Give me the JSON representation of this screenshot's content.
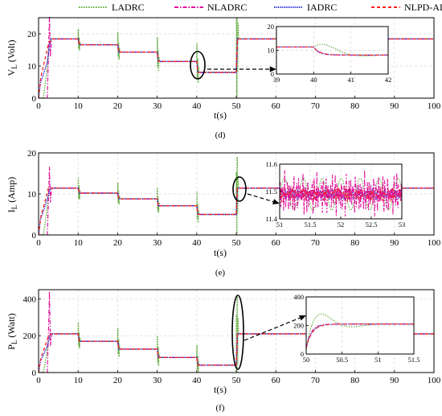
{
  "colors": {
    "LADRC": "#5fa83a",
    "NLADRC": "#e0109a",
    "IADRC": "#1a1ad8",
    "NLPD-ADRC": "#ff2020",
    "grid": "#d6d6d6"
  },
  "legend": {
    "placement": "top",
    "entries": [
      "LADRC",
      "NLADRC",
      "IADRC",
      "NLPD-ADRC"
    ]
  },
  "chart_data": [
    {
      "type": "line",
      "id": "d",
      "caption": "(d)",
      "xlabel": "t(s)",
      "ylabel": "V",
      "ylabel_sub": "L",
      "ylabel_unit": "(Volt)",
      "xlim": [
        0,
        100
      ],
      "ylim": [
        0,
        25
      ],
      "xticks": [
        0,
        10,
        20,
        30,
        40,
        50,
        60,
        70,
        80,
        90,
        100
      ],
      "yticks": [
        0,
        10,
        20
      ],
      "grid": true,
      "reference_levels": [
        {
          "t_start": 3,
          "t_end": 10,
          "value": 18.4
        },
        {
          "t_start": 10,
          "t_end": 20,
          "value": 16.6
        },
        {
          "t_start": 20,
          "t_end": 30,
          "value": 14.3
        },
        {
          "t_start": 30,
          "t_end": 40,
          "value": 11.4
        },
        {
          "t_start": 40,
          "t_end": 50,
          "value": 8.0
        },
        {
          "t_start": 50,
          "t_end": 100,
          "value": 18.4
        }
      ],
      "startup_peaks": {
        "LADRC": 16,
        "NLADRC": 26,
        "IADRC": 14,
        "NLPD-ADRC": 17
      },
      "inset": {
        "xlim": [
          39,
          42
        ],
        "ylim": [
          0,
          20
        ],
        "xticks": [
          39,
          40,
          41,
          42
        ],
        "yticks": [
          0,
          10,
          20
        ],
        "level_before": 11.4,
        "level_after": 8.0,
        "step_time": 40,
        "ladrc_peak": 18,
        "ladrc_trough": 3
      }
    },
    {
      "type": "line",
      "id": "e",
      "caption": "(e)",
      "xlabel": "t(s)",
      "ylabel": "I",
      "ylabel_sub": "L",
      "ylabel_unit": "(Amp)",
      "xlim": [
        0,
        100
      ],
      "ylim": [
        0,
        20
      ],
      "xticks": [
        0,
        10,
        20,
        30,
        40,
        50,
        60,
        70,
        80,
        90,
        100
      ],
      "yticks": [
        0,
        10,
        20
      ],
      "grid": true,
      "reference_levels": [
        {
          "t_start": 3,
          "t_end": 10,
          "value": 11.4
        },
        {
          "t_start": 10,
          "t_end": 20,
          "value": 10.2
        },
        {
          "t_start": 20,
          "t_end": 30,
          "value": 8.8
        },
        {
          "t_start": 30,
          "t_end": 40,
          "value": 7.1
        },
        {
          "t_start": 40,
          "t_end": 50,
          "value": 5.0
        },
        {
          "t_start": 50,
          "t_end": 100,
          "value": 11.4
        }
      ],
      "startup_peaks": {
        "LADRC": 11,
        "NLADRC": 16.5,
        "IADRC": 11,
        "NLPD-ADRC": 11.5
      },
      "inset": {
        "xlim": [
          51,
          53
        ],
        "ylim": [
          11.4,
          11.6
        ],
        "xticks": [
          51,
          51.5,
          52,
          52.5,
          53
        ],
        "yticks": [
          11.4,
          11.5,
          11.6
        ],
        "mean_level": 11.49
      }
    },
    {
      "type": "line",
      "id": "f",
      "caption": "(f)",
      "xlabel": "t(s)",
      "ylabel": "P",
      "ylabel_sub": "L",
      "ylabel_unit": "(Watt)",
      "xlim": [
        0,
        100
      ],
      "ylim": [
        0,
        450
      ],
      "xticks": [
        0,
        10,
        20,
        30,
        40,
        50,
        60,
        70,
        80,
        90,
        100
      ],
      "yticks": [
        0,
        200,
        400
      ],
      "grid": true,
      "reference_levels": [
        {
          "t_start": 3,
          "t_end": 10,
          "value": 210
        },
        {
          "t_start": 10,
          "t_end": 20,
          "value": 170
        },
        {
          "t_start": 20,
          "t_end": 30,
          "value": 127
        },
        {
          "t_start": 30,
          "t_end": 40,
          "value": 82
        },
        {
          "t_start": 40,
          "t_end": 50,
          "value": 40
        },
        {
          "t_start": 50,
          "t_end": 100,
          "value": 210
        }
      ],
      "startup_peaks": {
        "LADRC": 200,
        "NLADRC": 440,
        "IADRC": 180,
        "NLPD-ADRC": 200
      },
      "inset": {
        "xlim": [
          50,
          51.5
        ],
        "ylim": [
          0,
          400
        ],
        "xticks": [
          50,
          50.5,
          51,
          51.5
        ],
        "yticks": [
          0,
          200,
          400
        ],
        "level_before": 40,
        "level_after": 210,
        "step_time": 50,
        "ladrc_peak": 290
      }
    }
  ]
}
